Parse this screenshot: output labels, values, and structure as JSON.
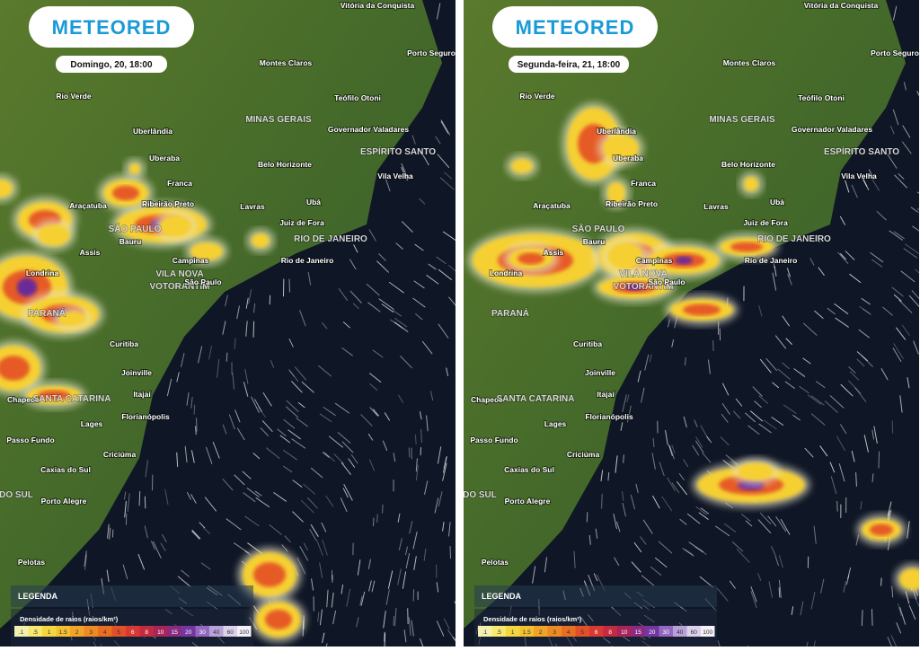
{
  "logo": "METEORED",
  "panels": [
    {
      "date": "Domingo, 20, 18:00"
    },
    {
      "date": "Segunda-feira, 21, 18:00"
    }
  ],
  "map_labels": [
    "Vitória da Conquista",
    "Montes Claros",
    "Porto Seguro",
    "Rio Verde",
    "Teófilo Otoni",
    "MINAS GERAIS",
    "Uberlândia",
    "Governador Valadares",
    "ESPÍRITO SANTO",
    "Uberaba",
    "Belo Horizonte",
    "Vila Velha",
    "Franca",
    "Ribeirão Preto",
    "Lavras",
    "Ubá",
    "Araçatuba",
    "Juiz de Fora",
    "SÃO PAULO",
    "RIO DE JANEIRO",
    "Bauru",
    "Assis",
    "Campinas",
    "Rio de Janeiro",
    "Londrina",
    "VILA NOVA",
    "VOTORANTIM",
    "São Paulo",
    "PARANÁ",
    "Curitiba",
    "Joinville",
    "Itajaí",
    "Chapecó",
    "SANTA CATARINA",
    "Lages",
    "Florianópolis",
    "Passo Fundo",
    "Criciúma",
    "Caxias do Sul",
    "DO SUL",
    "Porto Alegre",
    "Pelotas"
  ],
  "legend": {
    "title": "LEGENDA",
    "subtitle": "Densidade de raios (raios/km²)",
    "scale": [
      ".1",
      ".5",
      "1",
      "1.5",
      "2",
      "3",
      "4",
      "5",
      "6",
      "8",
      "10",
      "15",
      "20",
      "30",
      "40",
      "60",
      "100"
    ]
  }
}
